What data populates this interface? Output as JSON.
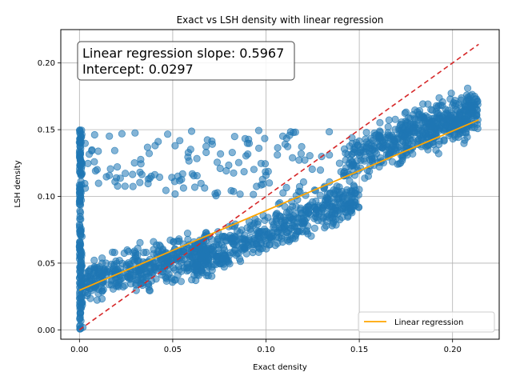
{
  "chart_data": {
    "type": "scatter",
    "title": "Exact vs LSH density with linear regression",
    "xlabel": "Exact density",
    "ylabel": "LSH density",
    "xlim": [
      -0.01,
      0.225
    ],
    "ylim": [
      -0.007,
      0.225
    ],
    "xticks": [
      "0.00",
      "0.05",
      "0.10",
      "0.15",
      "0.20"
    ],
    "xtick_values": [
      0.0,
      0.05,
      0.1,
      0.15,
      0.2
    ],
    "yticks": [
      "0.00",
      "0.05",
      "0.10",
      "0.15",
      "0.20"
    ],
    "ytick_values": [
      0.0,
      0.05,
      0.1,
      0.15,
      0.2
    ],
    "grid": true,
    "legend_position": "lower-right",
    "annotation": {
      "line1": "Linear regression slope: 0.5967",
      "line2": "Intercept: 0.0297"
    },
    "regression": {
      "name": "Linear regression",
      "slope": 0.5967,
      "intercept": 0.0297,
      "x_range": [
        0.0,
        0.214
      ],
      "color": "#ffa500"
    },
    "identity_line": {
      "x_range": [
        0.0,
        0.214
      ],
      "color": "#d62728",
      "style": "dashed"
    },
    "scatter_color": "#1f77b4",
    "clusters": [
      {
        "x_center": 0.0,
        "x_spread": 0.002,
        "y_low": 0.0,
        "y_high": 0.15,
        "count": 160
      },
      {
        "x_center": 0.03,
        "x_spread": 0.03,
        "y_low": 0.03,
        "y_high": 0.07,
        "count": 380
      },
      {
        "x_center": 0.095,
        "x_spread": 0.05,
        "y_low": 0.05,
        "y_high": 0.1,
        "count": 420
      },
      {
        "x_center": 0.18,
        "x_spread": 0.035,
        "y_low": 0.12,
        "y_high": 0.18,
        "count": 420
      },
      {
        "x_center": 0.07,
        "x_spread": 0.07,
        "y_low": 0.1,
        "y_high": 0.15,
        "count": 140
      }
    ]
  }
}
